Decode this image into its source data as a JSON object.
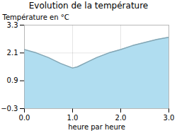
{
  "chart_data": {
    "type": "area",
    "title": "Evolution de la température",
    "xlabel": "heure par heure",
    "ylabel": "Température en °C",
    "x": [
      0,
      0.25,
      0.5,
      0.75,
      1.0,
      1.1,
      1.3,
      1.5,
      1.75,
      2.0,
      2.25,
      2.5,
      2.75,
      3.0
    ],
    "values": [
      2.25,
      2.1,
      1.9,
      1.65,
      1.45,
      1.5,
      1.7,
      1.9,
      2.1,
      2.25,
      2.42,
      2.55,
      2.68,
      2.78
    ],
    "color": "#b0ddf0",
    "xlim": [
      0,
      3
    ],
    "ylim": [
      -0.3,
      3.3
    ],
    "xticks": [
      0,
      1,
      2,
      3
    ],
    "yticks": [
      -0.3,
      0.9,
      2.1,
      3.3
    ],
    "grid": true
  }
}
